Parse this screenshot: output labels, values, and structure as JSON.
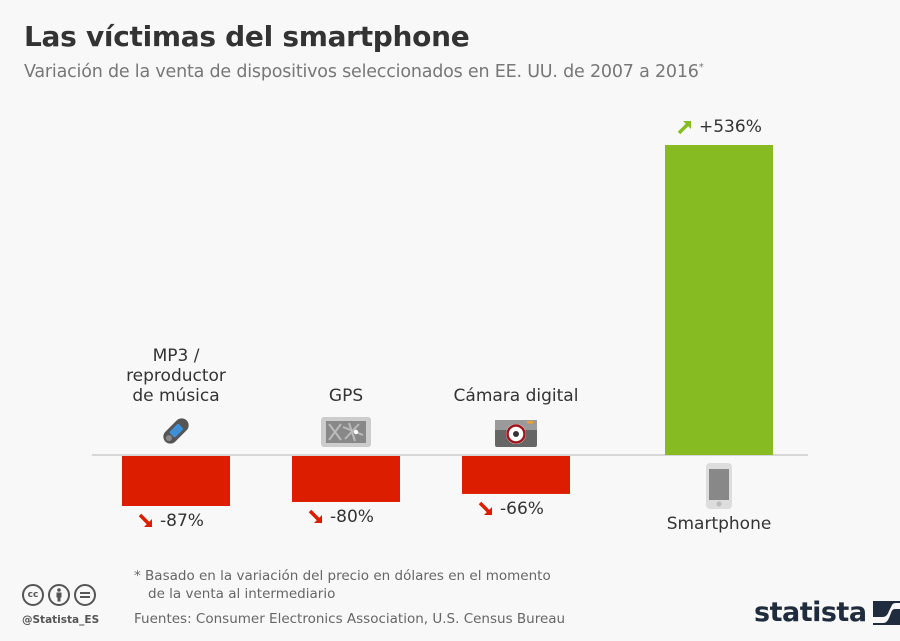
{
  "header": {
    "title": "Las víctimas del smartphone",
    "subtitle": "Variación de la venta de dispositivos seleccionados en EE. UU. de 2007 a 2016",
    "subtitle_marker": "*"
  },
  "chart_data": {
    "type": "bar",
    "title": "Las víctimas del smartphone",
    "subtitle": "Variación de la venta de dispositivos seleccionados en EE. UU. de 2007 a 2016*",
    "xlabel": "",
    "ylabel": "",
    "unit": "%",
    "categories": [
      "MP3 / reproductor de música",
      "GPS",
      "Cámara digital",
      "Smartphone"
    ],
    "category_lines": [
      [
        "MP3 /",
        "reproductor",
        "de música"
      ],
      [
        "GPS"
      ],
      [
        "Cámara digital"
      ],
      [
        "Smartphone"
      ]
    ],
    "values": [
      -87,
      -80,
      -66,
      536
    ],
    "value_labels": [
      "-87%",
      "-80%",
      "-66%",
      "+536%"
    ],
    "icons": [
      "mp3-player-icon",
      "gps-icon",
      "camera-icon",
      "smartphone-icon"
    ],
    "ylim": [
      -100,
      536
    ],
    "grid": false,
    "legend": "none",
    "colors": {
      "negative": "#dd1d00",
      "positive": "#86bb22",
      "baseline": "#cccccc"
    }
  },
  "footer": {
    "footnote_line1": "* Basado en la variación del precio en dólares en el momento",
    "footnote_line2": "de la venta al intermediario",
    "sources": "Fuentes: Consumer Electronics Association, U.S. Census Bureau",
    "handle": "@Statista_ES",
    "license_icons": [
      "cc",
      "by",
      "nd"
    ],
    "logo_text": "statista"
  }
}
